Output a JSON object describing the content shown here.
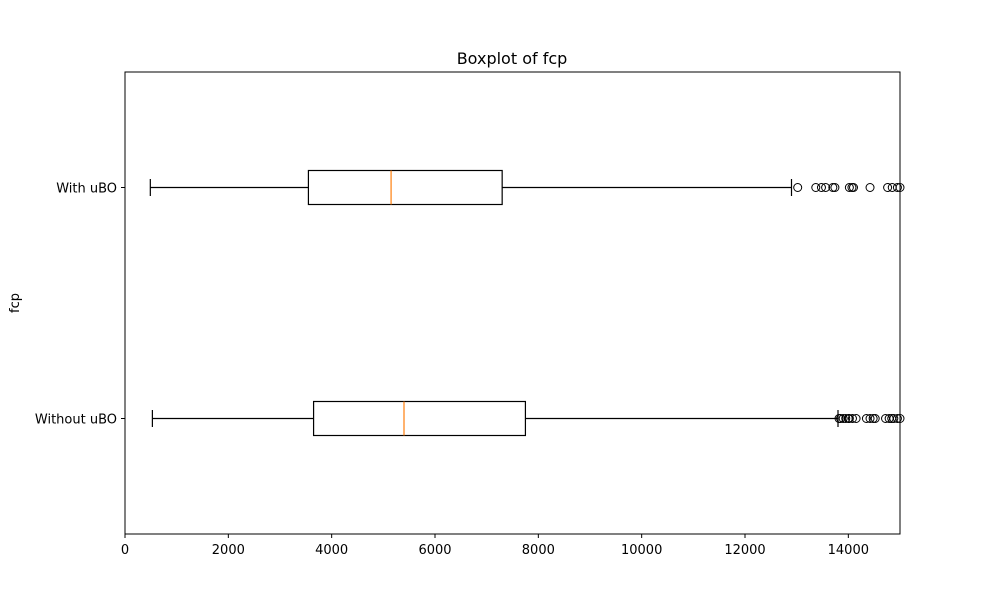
{
  "chart_data": {
    "type": "boxplot",
    "title": "Boxplot of fcp",
    "xlabel": "",
    "ylabel": "fcp",
    "orientation": "horizontal",
    "xlim": [
      0,
      15000
    ],
    "xticks": [
      0,
      2000,
      4000,
      6000,
      8000,
      10000,
      12000,
      14000
    ],
    "grid": false,
    "categories": [
      "Without uBO",
      "With uBO"
    ],
    "series": [
      {
        "category": "Without uBO",
        "whisker_low": 530,
        "q1": 3650,
        "median": 5400,
        "q3": 7750,
        "whisker_high": 13800,
        "outliers": [
          13820,
          13850,
          13900,
          13950,
          14000,
          14020,
          14080,
          14150,
          14350,
          14420,
          14480,
          14520,
          14720,
          14790,
          14840,
          14880,
          14950,
          15000
        ]
      },
      {
        "category": "With uBO",
        "whisker_low": 490,
        "q1": 3550,
        "median": 5150,
        "q3": 7300,
        "whisker_high": 12900,
        "outliers": [
          13020,
          13370,
          13480,
          13560,
          13700,
          13740,
          14020,
          14070,
          14100,
          14420,
          14760,
          14850,
          14950,
          15000
        ]
      }
    ],
    "colors": {
      "box": "#000000",
      "median": "#ff7f0e",
      "whisker": "#000000",
      "outlier": "#000000"
    }
  }
}
